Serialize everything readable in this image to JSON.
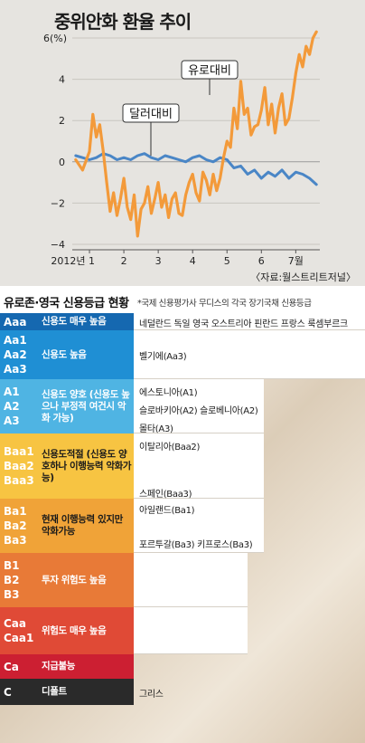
{
  "chart_data": {
    "type": "line",
    "title": "중위안화 환율 추이",
    "y_unit": "6(%)",
    "ylim": [
      -4,
      6
    ],
    "yticks": [
      "4",
      "2",
      "0",
      "−2",
      "−4"
    ],
    "x_labels": [
      "2012년 1",
      "2",
      "3",
      "4",
      "5",
      "6",
      "7월"
    ],
    "x_label_values": [
      1,
      2,
      3,
      4,
      5,
      6,
      7
    ],
    "xlim": [
      0.5,
      7.7
    ],
    "series": [
      {
        "name": "달러대비",
        "color": "#4a86c6",
        "x": [
          0.6,
          0.8,
          1.0,
          1.2,
          1.4,
          1.6,
          1.8,
          2.0,
          2.2,
          2.4,
          2.6,
          2.8,
          3.0,
          3.2,
          3.4,
          3.6,
          3.8,
          4.0,
          4.2,
          4.4,
          4.6,
          4.8,
          5.0,
          5.2,
          5.4,
          5.6,
          5.8,
          6.0,
          6.2,
          6.4,
          6.6,
          6.8,
          7.0,
          7.2,
          7.4,
          7.6
        ],
        "values": [
          0.3,
          0.2,
          0.1,
          0.2,
          0.4,
          0.3,
          0.1,
          0.2,
          0.1,
          0.3,
          0.4,
          0.2,
          0.1,
          0.3,
          0.2,
          0.1,
          0.0,
          0.2,
          0.3,
          0.1,
          0.0,
          0.2,
          0.1,
          -0.3,
          -0.2,
          -0.6,
          -0.4,
          -0.8,
          -0.5,
          -0.7,
          -0.4,
          -0.8,
          -0.5,
          -0.6,
          -0.8,
          -1.1
        ]
      },
      {
        "name": "유로대비",
        "color": "#f39a3a",
        "x": [
          0.6,
          0.8,
          1.0,
          1.1,
          1.2,
          1.3,
          1.4,
          1.5,
          1.6,
          1.7,
          1.8,
          1.9,
          2.0,
          2.1,
          2.2,
          2.3,
          2.4,
          2.5,
          2.6,
          2.7,
          2.8,
          2.9,
          3.0,
          3.1,
          3.2,
          3.3,
          3.4,
          3.5,
          3.6,
          3.7,
          3.8,
          3.9,
          4.0,
          4.1,
          4.2,
          4.3,
          4.4,
          4.5,
          4.6,
          4.7,
          4.8,
          4.9,
          5.0,
          5.1,
          5.2,
          5.3,
          5.4,
          5.5,
          5.6,
          5.7,
          5.8,
          5.9,
          6.0,
          6.1,
          6.2,
          6.3,
          6.4,
          6.5,
          6.6,
          6.7,
          6.8,
          6.9,
          7.0,
          7.1,
          7.2,
          7.3,
          7.4,
          7.5,
          7.6
        ],
        "values": [
          0.1,
          -0.4,
          0.5,
          2.3,
          1.2,
          1.8,
          0.5,
          -1.0,
          -2.4,
          -1.5,
          -2.6,
          -1.8,
          -0.8,
          -2.2,
          -2.8,
          -1.6,
          -3.6,
          -2.3,
          -2.0,
          -1.2,
          -2.5,
          -1.8,
          -1.0,
          -2.2,
          -1.6,
          -2.7,
          -1.8,
          -1.5,
          -2.5,
          -2.6,
          -1.6,
          -1.0,
          -0.6,
          -1.5,
          -1.9,
          -0.5,
          -0.9,
          -1.6,
          -0.6,
          -1.4,
          -0.8,
          0.2,
          1.0,
          0.7,
          2.6,
          1.6,
          3.9,
          2.3,
          2.6,
          1.3,
          1.7,
          1.8,
          2.5,
          3.6,
          1.8,
          2.8,
          1.4,
          2.6,
          3.3,
          1.8,
          2.1,
          3.1,
          4.3,
          5.2,
          4.6,
          5.6,
          5.2,
          6.0,
          6.3
        ]
      }
    ],
    "annotations": [
      {
        "text": "달러대비",
        "series": "달러대비"
      },
      {
        "text": "유로대비",
        "series": "유로대비"
      }
    ],
    "source": "〈자료:월스트리트저널〉",
    "grid": true
  },
  "ratings": {
    "title": "유로존·영국 신용등급 현황",
    "subtitle": "*국제 신용평가사 무디스의 각국 장기국채 신용등급",
    "rows": [
      {
        "codes": [
          "Aaa"
        ],
        "desc": "신용도 매우 높음",
        "color": "#1568b0",
        "countries": [
          "네덜란드 독일 영국 오스트리아 핀란드 프랑스 룩셈부르크"
        ]
      },
      {
        "codes": [
          "Aa1",
          "Aa2",
          "Aa3"
        ],
        "desc": "신용도 높음",
        "color": "#1f8fd4",
        "countries": [
          "벨기에(Aa3)"
        ]
      },
      {
        "codes": [
          "A1",
          "A2",
          "A3"
        ],
        "desc": "신용도 양호 (신용도 높으나 부정적 여건시 악화 가능)",
        "color": "#4fb4e3",
        "countries": [
          "에스토니아(A1)",
          "슬로바키아(A2) 슬로베니아(A2)",
          "몰타(A3)"
        ]
      },
      {
        "codes": [
          "Baa1",
          "Baa2",
          "Baa3"
        ],
        "desc": "신용도적절 (신용도 양호하나 이행능력 악화가능)",
        "color": "#f7c442",
        "countries": [
          "이탈리아(Baa2)",
          "스페인(Baa3)"
        ]
      },
      {
        "codes": [
          "Ba1",
          "Ba2",
          "Ba3"
        ],
        "desc": "현재 이행능력 있지만 악화가능",
        "color": "#f0a338",
        "countries": [
          "아일랜드(Ba1)",
          "포르투갈(Ba3) 키프로스(Ba3)"
        ]
      },
      {
        "codes": [
          "B1",
          "B2",
          "B3"
        ],
        "desc": "투자 위험도 높음",
        "color": "#e87a37",
        "countries": []
      },
      {
        "codes": [
          "Caa",
          "Caa1"
        ],
        "desc": "위험도 매우 높음",
        "color": "#e04a36",
        "countries": []
      },
      {
        "codes": [
          "Ca"
        ],
        "desc": "지급불능",
        "color": "#cc1f32",
        "countries": []
      },
      {
        "codes": [
          "C"
        ],
        "desc": "디폴트",
        "color": "#2a2a2a",
        "countries": [
          "그리스"
        ]
      }
    ]
  }
}
